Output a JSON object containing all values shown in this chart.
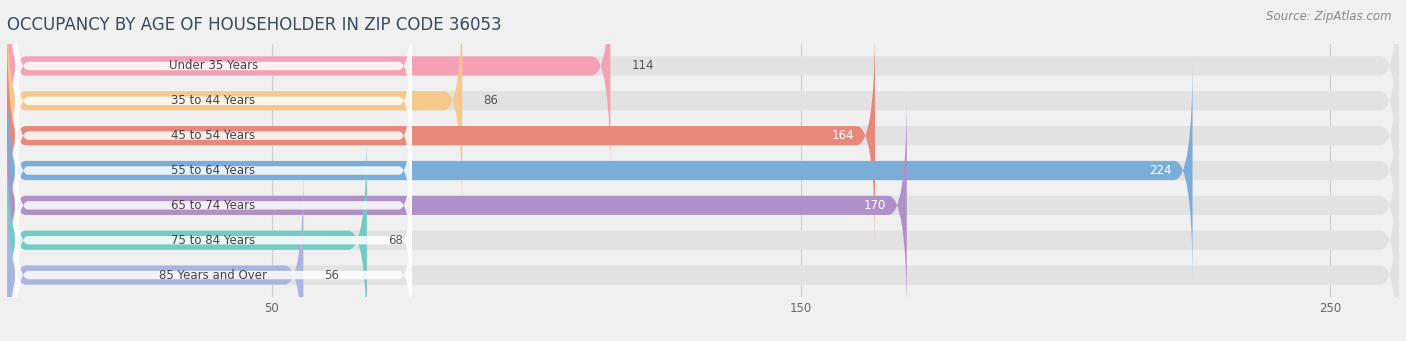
{
  "title": "OCCUPANCY BY AGE OF HOUSEHOLDER IN ZIP CODE 36053",
  "source": "Source: ZipAtlas.com",
  "categories": [
    "Under 35 Years",
    "35 to 44 Years",
    "45 to 54 Years",
    "55 to 64 Years",
    "65 to 74 Years",
    "75 to 84 Years",
    "85 Years and Over"
  ],
  "values": [
    114,
    86,
    164,
    224,
    170,
    68,
    56
  ],
  "bar_colors": [
    "#f4a0b5",
    "#f5c98b",
    "#e8887a",
    "#7aadd8",
    "#b090c8",
    "#72ccc4",
    "#aab4e0"
  ],
  "xlim_max": 263,
  "xticks": [
    50,
    150,
    250
  ],
  "bg_color": "#f0f0f0",
  "bar_bg_color": "#e2e2e2",
  "label_bg_color": "#ffffff",
  "title_color": "#3a4a5a",
  "source_color": "#888888",
  "title_fontsize": 12,
  "label_fontsize": 8.5,
  "value_fontsize": 8.5,
  "source_fontsize": 8.5,
  "bar_height": 0.55,
  "figsize": [
    14.06,
    3.41
  ],
  "dpi": 100,
  "value_inside_color": "#ffffff",
  "value_outside_color": "#555555",
  "label_text_color": "#444444",
  "inside_threshold": 150
}
